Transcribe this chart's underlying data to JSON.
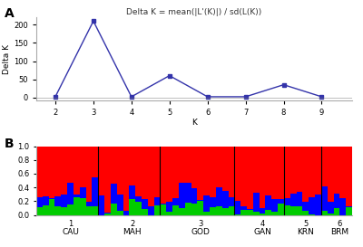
{
  "panel_a": {
    "title": "Delta K = mean(|L'(K)|) / sd(L(K))",
    "x": [
      2,
      3,
      4,
      5,
      6,
      7,
      8,
      9
    ],
    "y": [
      2,
      210,
      2,
      60,
      2,
      2,
      35,
      2
    ],
    "xlabel": "K",
    "ylabel": "Delta K",
    "color": "#3333aa",
    "marker": "s",
    "markersize": 3,
    "linewidth": 1.0
  },
  "panel_b": {
    "group_labels": [
      "CAU",
      "MAH",
      "GOD",
      "GAN",
      "KRN",
      "BRM"
    ],
    "group_numbers": [
      "1",
      "2",
      "3",
      "4",
      "5",
      "6"
    ],
    "colors": [
      "#ff0000",
      "#0000ff",
      "#00cc00"
    ],
    "group_sizes": [
      10,
      10,
      12,
      8,
      6,
      5
    ]
  }
}
